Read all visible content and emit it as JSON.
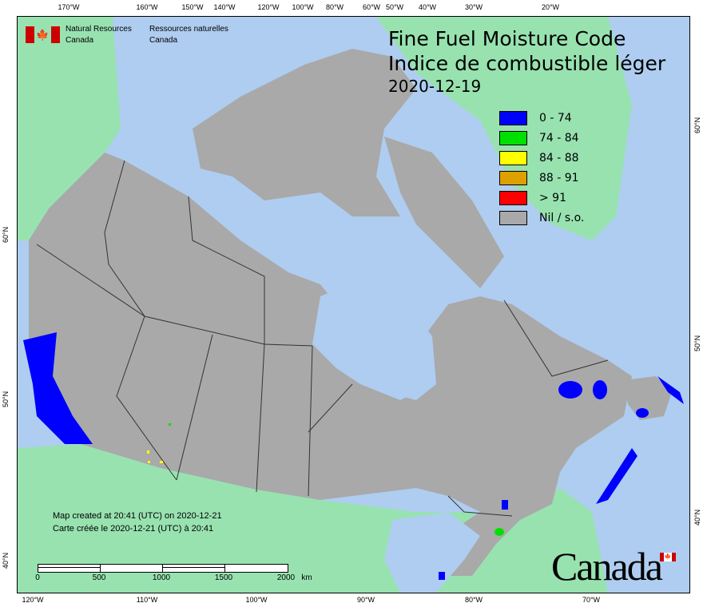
{
  "header": {
    "agency_en": [
      "Natural Resources",
      "Canada"
    ],
    "agency_fr": [
      "Ressources naturelles",
      "Canada"
    ]
  },
  "title": {
    "line1": "Fine Fuel Moisture Code",
    "line2": "Indice de combustible léger",
    "date": "2020-12-19"
  },
  "legend": [
    {
      "label": "0 - 74",
      "color": "#0000ff"
    },
    {
      "label": "74 - 84",
      "color": "#00e000"
    },
    {
      "label": "84 - 88",
      "color": "#ffff00"
    },
    {
      "label": "88 - 91",
      "color": "#dda000"
    },
    {
      "label": "> 91",
      "color": "#ff0000"
    },
    {
      "label": "Nil / s.o.",
      "color": "#a9a9a9"
    }
  ],
  "axes": {
    "top": [
      "170°W",
      "160°W",
      "150°W",
      "140°W",
      "120°W",
      "100°W",
      "80°W",
      "60°W",
      "50°W",
      "40°W",
      "30°W",
      "20°W"
    ],
    "bottom": [
      "120°W",
      "110°W",
      "100°W",
      "90°W",
      "80°W",
      "70°W"
    ],
    "left": [
      "60°N",
      "50°N",
      "40°N"
    ],
    "right": [
      "60°N",
      "50°N",
      "40°N"
    ]
  },
  "created": {
    "en": "Map created at 20:41 (UTC) on 2020-12-21",
    "fr": "Carte créée le 2020-12-21 (UTC) à 20:41"
  },
  "scale": {
    "ticks": [
      "0",
      "500",
      "1000",
      "1500",
      "2000"
    ],
    "unit": "km"
  },
  "wordmark": "Canada",
  "colors": {
    "water": "#aecdf0",
    "foreign_land": "#98e2b0",
    "canada_nil": "#a9a9a9",
    "border": "#333333"
  }
}
